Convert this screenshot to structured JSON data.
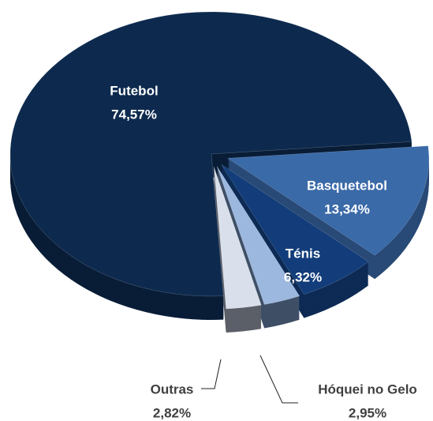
{
  "chart_data": {
    "type": "pie",
    "categories": [
      "Futebol",
      "Basquetebol",
      "Ténis",
      "Hóquei no Gelo",
      "Outras"
    ],
    "values": [
      74.57,
      13.34,
      6.32,
      2.95,
      2.82
    ],
    "value_labels": [
      "74,57%",
      "13,34%",
      "6,32%",
      "2,95%",
      "2,82%"
    ],
    "colors": [
      "#0d2a4e",
      "#3a6aa8",
      "#123d7a",
      "#9db8de",
      "#d9e0ec"
    ]
  }
}
